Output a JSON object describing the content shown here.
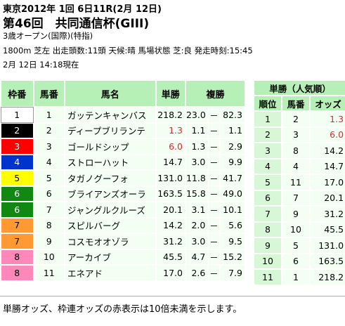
{
  "header": {
    "line1": "東京2012年 1回 6日11R(2月 12日)",
    "race_title": "第46回　共同通信杯(GIII)",
    "conditions": "3歳オープン(国際)(特指)",
    "details": "1800m 芝左 出走頭数:11頭 天候:晴 馬場状態 芝:良 発走時刻:15:45",
    "as_of": "2月 12日 14:18現在"
  },
  "left_table": {
    "headers": {
      "waku": "枠番",
      "umaban": "馬番",
      "name": "馬名",
      "win": "単勝",
      "place": "複勝"
    },
    "rows": [
      {
        "waku": "1",
        "umaban": "1",
        "name": "ガッテンキャンバス",
        "win": "218.2",
        "place_lo": "23.0",
        "dash": "－",
        "place_hi": "82.3",
        "win_red": false,
        "lo_red": false,
        "hi_red": false,
        "waku_bg": "#ffffff",
        "waku_fg": "#000000"
      },
      {
        "waku": "2",
        "umaban": "2",
        "name": "ディープブリランテ",
        "win": "1.3",
        "place_lo": "1.1",
        "dash": "－",
        "place_hi": "1.1",
        "win_red": true,
        "lo_red": false,
        "hi_red": false,
        "waku_bg": "#000000",
        "waku_fg": "#ffffff"
      },
      {
        "waku": "3",
        "umaban": "3",
        "name": "ゴールドシップ",
        "win": "6.0",
        "place_lo": "1.3",
        "dash": "－",
        "place_hi": "2.9",
        "win_red": true,
        "lo_red": false,
        "hi_red": false,
        "waku_bg": "#ff0000",
        "waku_fg": "#ffffff"
      },
      {
        "waku": "4",
        "umaban": "4",
        "name": "ストローハット",
        "win": "14.7",
        "place_lo": "3.0",
        "dash": "－",
        "place_hi": "9.9",
        "win_red": false,
        "lo_red": false,
        "hi_red": false,
        "waku_bg": "#0033cc",
        "waku_fg": "#ffffff"
      },
      {
        "waku": "5",
        "umaban": "5",
        "name": "タガノグーフォ",
        "win": "131.0",
        "place_lo": "11.8",
        "dash": "－",
        "place_hi": "41.7",
        "win_red": false,
        "lo_red": false,
        "hi_red": false,
        "waku_bg": "#ffff00",
        "waku_fg": "#000000"
      },
      {
        "waku": "6",
        "umaban": "6",
        "name": "ブライアンズオーラ",
        "win": "163.5",
        "place_lo": "15.8",
        "dash": "－",
        "place_hi": "49.0",
        "win_red": false,
        "lo_red": false,
        "hi_red": false,
        "waku_bg": "#118811",
        "waku_fg": "#ffffff"
      },
      {
        "waku": "6",
        "umaban": "7",
        "name": "ジャングルクルーズ",
        "win": "20.1",
        "place_lo": "3.1",
        "dash": "－",
        "place_hi": "10.1",
        "win_red": false,
        "lo_red": false,
        "hi_red": false,
        "waku_bg": "#118811",
        "waku_fg": "#ffffff"
      },
      {
        "waku": "7",
        "umaban": "8",
        "name": "スピルバーグ",
        "win": "14.2",
        "place_lo": "2.0",
        "dash": "－",
        "place_hi": "5.6",
        "win_red": false,
        "lo_red": false,
        "hi_red": false,
        "waku_bg": "#ff9933",
        "waku_fg": "#000000"
      },
      {
        "waku": "7",
        "umaban": "9",
        "name": "コスモオオゾラ",
        "win": "31.2",
        "place_lo": "3.0",
        "dash": "－",
        "place_hi": "9.5",
        "win_red": false,
        "lo_red": false,
        "hi_red": false,
        "waku_bg": "#ff9933",
        "waku_fg": "#000000"
      },
      {
        "waku": "8",
        "umaban": "10",
        "name": "アーカイブ",
        "win": "45.5",
        "place_lo": "4.7",
        "dash": "－",
        "place_hi": "15.2",
        "win_red": false,
        "lo_red": false,
        "hi_red": false,
        "waku_bg": "#ff88bb",
        "waku_fg": "#000000"
      },
      {
        "waku": "8",
        "umaban": "11",
        "name": "エネアド",
        "win": "17.0",
        "place_lo": "2.6",
        "dash": "－",
        "place_hi": "7.9",
        "win_red": false,
        "lo_red": false,
        "hi_red": false,
        "waku_bg": "#ff88bb",
        "waku_fg": "#000000"
      }
    ]
  },
  "right_table": {
    "title": "単勝（人気順）",
    "headers": {
      "rank": "順位",
      "umaban": "馬番",
      "odds": "オッズ"
    },
    "rows": [
      {
        "rank": "1",
        "umaban": "2",
        "odds": "1.3",
        "red": true
      },
      {
        "rank": "2",
        "umaban": "3",
        "odds": "6.0",
        "red": true
      },
      {
        "rank": "3",
        "umaban": "8",
        "odds": "14.2",
        "red": false
      },
      {
        "rank": "4",
        "umaban": "4",
        "odds": "14.7",
        "red": false
      },
      {
        "rank": "5",
        "umaban": "11",
        "odds": "17.0",
        "red": false
      },
      {
        "rank": "6",
        "umaban": "7",
        "odds": "20.1",
        "red": false
      },
      {
        "rank": "7",
        "umaban": "9",
        "odds": "31.2",
        "red": false
      },
      {
        "rank": "8",
        "umaban": "10",
        "odds": "45.5",
        "red": false
      },
      {
        "rank": "9",
        "umaban": "5",
        "odds": "131.0",
        "red": false
      },
      {
        "rank": "10",
        "umaban": "6",
        "odds": "163.5",
        "red": false
      },
      {
        "rank": "11",
        "umaban": "1",
        "odds": "218.2",
        "red": false
      }
    ]
  },
  "footer": {
    "note": "単勝オッズ、枠連オッズの赤表示は10倍未満を示します。"
  }
}
